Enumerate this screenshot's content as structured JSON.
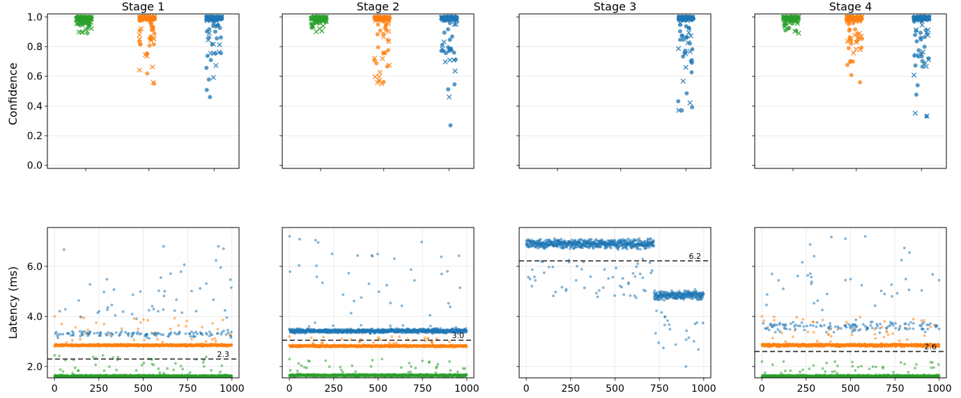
{
  "colors": {
    "green": "#2ca02c",
    "orange": "#ff7f0e",
    "blue": "#1f77b4"
  },
  "chart_data": {
    "type": "scatter",
    "layout": "2x4 grid of subplots; top row strip plots of confidence, bottom row latency vs request index",
    "panel_titles": [
      "Stage 1",
      "Stage 2",
      "Stage 3",
      "Stage 4"
    ],
    "top_row": {
      "ylabel": "Confidence",
      "ylim": [
        -0.02,
        1.02
      ],
      "yticks": [
        0.0,
        0.2,
        0.4,
        0.6,
        0.8,
        1.0
      ],
      "ytick_labels": [
        "0.0",
        "0.2",
        "0.4",
        "0.6",
        "0.8",
        "1.0"
      ],
      "xlim": [
        0,
        1000
      ],
      "xtick_positions": [
        200,
        530,
        870
      ],
      "marker_legend": {
        "o": "circle marker",
        "x": "cross marker"
      },
      "panels": [
        {
          "strips": [
            {
              "color": "green",
              "x": 190,
              "min": 0.89,
              "max": 1.0
            },
            {
              "color": "orange",
              "x": 520,
              "min": 0.55,
              "max": 1.0
            },
            {
              "color": "blue",
              "x": 870,
              "min": 0.46,
              "max": 1.0
            }
          ]
        },
        {
          "strips": [
            {
              "color": "green",
              "x": 190,
              "min": 0.9,
              "max": 1.0
            },
            {
              "color": "orange",
              "x": 520,
              "min": 0.55,
              "max": 1.0
            },
            {
              "color": "blue",
              "x": 870,
              "min": 0.27,
              "max": 1.0
            }
          ]
        },
        {
          "strips": [
            {
              "color": "blue",
              "x": 870,
              "min": 0.37,
              "max": 1.0
            }
          ]
        },
        {
          "strips": [
            {
              "color": "green",
              "x": 190,
              "min": 0.89,
              "max": 1.0
            },
            {
              "color": "orange",
              "x": 520,
              "min": 0.56,
              "max": 1.0
            },
            {
              "color": "blue",
              "x": 870,
              "min": 0.33,
              "max": 1.0
            }
          ]
        }
      ]
    },
    "bottom_row": {
      "ylabel": "Latency (ms)",
      "ylim": [
        1.55,
        7.55
      ],
      "yticks": [
        2.0,
        4.0,
        6.0
      ],
      "ytick_labels": [
        "2.0",
        "4.0",
        "6.0"
      ],
      "xlim": [
        -40,
        1040
      ],
      "xticks": [
        0,
        250,
        500,
        750,
        1000
      ],
      "xtick_labels": [
        "0",
        "250",
        "500",
        "750",
        "1000"
      ],
      "panels": [
        {
          "threshold": 2.3,
          "threshold_label": "2.3",
          "series": [
            {
              "color": "green",
              "base": 1.62,
              "spread": 0.06,
              "outlier_max": 2.45
            },
            {
              "color": "orange",
              "base": 2.85,
              "spread": 0.06,
              "outlier_max": 4.0
            },
            {
              "color": "blue",
              "base": 3.3,
              "spread": 0.2,
              "outlier_max": 6.8,
              "sparse": true
            }
          ]
        },
        {
          "threshold": 3.05,
          "threshold_label": "3.0",
          "series": [
            {
              "color": "green",
              "base": 1.65,
              "spread": 0.06,
              "outlier_max": 2.3
            },
            {
              "color": "orange",
              "base": 2.82,
              "spread": 0.06,
              "outlier_max": 3.2
            },
            {
              "color": "blue",
              "base": 3.42,
              "spread": 0.12,
              "outlier_max": 7.2
            }
          ]
        },
        {
          "threshold": 6.22,
          "threshold_label": "6.2",
          "series": [
            {
              "color": "blue",
              "base_early": 6.9,
              "base_late": 4.85,
              "change_x": 720,
              "spread": 0.25,
              "outlier_min": 2.0
            }
          ]
        },
        {
          "threshold": 2.6,
          "threshold_label": "2.6",
          "series": [
            {
              "color": "green",
              "base": 1.62,
              "spread": 0.06,
              "outlier_max": 2.2
            },
            {
              "color": "orange",
              "base": 2.85,
              "spread": 0.08,
              "outlier_max": 4.0
            },
            {
              "color": "blue",
              "base": 3.6,
              "spread": 0.3,
              "outlier_max": 7.2,
              "sparse": true
            }
          ]
        }
      ]
    }
  }
}
